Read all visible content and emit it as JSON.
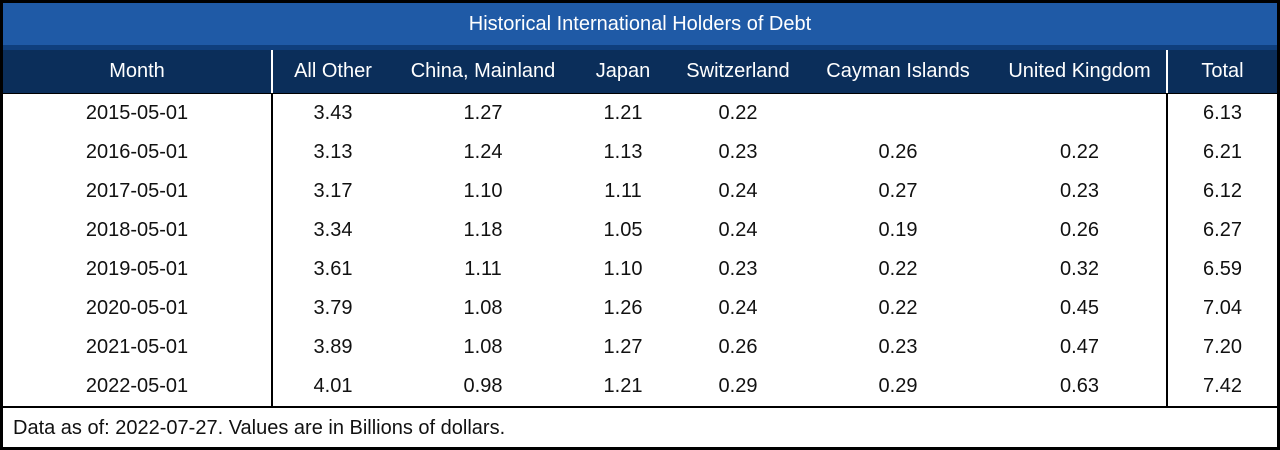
{
  "chart_data": {
    "type": "table",
    "title": "Historical International Holders of Debt",
    "columns": [
      "Month",
      "All Other",
      "China, Mainland",
      "Japan",
      "Switzerland",
      "Cayman Islands",
      "United Kingdom",
      "Total"
    ],
    "rows": [
      [
        "2015-05-01",
        "3.43",
        "1.27",
        "1.21",
        "0.22",
        "",
        "",
        "6.13"
      ],
      [
        "2016-05-01",
        "3.13",
        "1.24",
        "1.13",
        "0.23",
        "0.26",
        "0.22",
        "6.21"
      ],
      [
        "2017-05-01",
        "3.17",
        "1.10",
        "1.11",
        "0.24",
        "0.27",
        "0.23",
        "6.12"
      ],
      [
        "2018-05-01",
        "3.34",
        "1.18",
        "1.05",
        "0.24",
        "0.19",
        "0.26",
        "6.27"
      ],
      [
        "2019-05-01",
        "3.61",
        "1.11",
        "1.10",
        "0.23",
        "0.22",
        "0.32",
        "6.59"
      ],
      [
        "2020-05-01",
        "3.79",
        "1.08",
        "1.26",
        "0.24",
        "0.22",
        "0.45",
        "7.04"
      ],
      [
        "2021-05-01",
        "3.89",
        "1.08",
        "1.27",
        "0.26",
        "0.23",
        "0.47",
        "7.20"
      ],
      [
        "2022-05-01",
        "4.01",
        "0.98",
        "1.21",
        "0.29",
        "0.29",
        "0.63",
        "7.42"
      ]
    ],
    "footnote": "Data as of: 2022-07-27. Values are in Billions of dollars."
  }
}
